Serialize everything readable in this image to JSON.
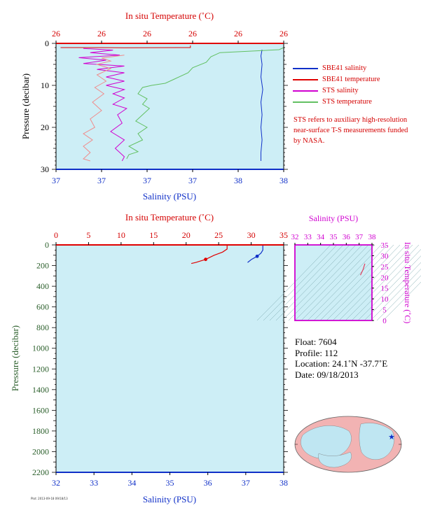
{
  "chart_data": [
    {
      "type": "line",
      "title": "",
      "top_axis_label": "In situ Temperature (˚C)",
      "top_ticks": [
        "26",
        "26",
        "26",
        "26",
        "26",
        "26"
      ],
      "xlabel": "Salinity (PSU)",
      "x_ticks": [
        "37",
        "37",
        "37",
        "37",
        "38",
        "38"
      ],
      "ylabel": "Pressure (decibar)",
      "y_ticks": [
        "0",
        "10",
        "20",
        "30"
      ],
      "ylim": [
        0,
        30
      ],
      "grid": false,
      "series": [
        {
          "name": "SBE41 salinity",
          "color": "#1030c8",
          "points": [
            [
              0.905,
              1.5
            ],
            [
              0.9,
              3
            ],
            [
              0.905,
              5
            ],
            [
              0.9,
              8
            ],
            [
              0.908,
              11
            ],
            [
              0.9,
              14
            ],
            [
              0.905,
              17
            ],
            [
              0.9,
              20
            ],
            [
              0.905,
              23
            ],
            [
              0.9,
              26
            ],
            [
              0.9,
              28
            ]
          ]
        },
        {
          "name": "SBE41 temperature",
          "color": "#e00000",
          "points": [
            [
              0.59,
              0.5
            ],
            [
              0.59,
              1.0
            ],
            [
              0.3,
              1.05
            ],
            [
              0.2,
              1.0
            ],
            [
              0.02,
              1.0
            ]
          ]
        },
        {
          "name": "STS salinity",
          "color": "#d000d0",
          "points": [
            [
              0.12,
              1.2
            ],
            [
              0.25,
              1.6
            ],
            [
              0.15,
              2.2
            ],
            [
              0.28,
              2.8
            ],
            [
              0.1,
              3.4
            ],
            [
              0.22,
              4.0
            ],
            [
              0.12,
              4.8
            ],
            [
              0.3,
              5.4
            ],
            [
              0.18,
              6.2
            ],
            [
              0.3,
              7.0
            ],
            [
              0.22,
              8.0
            ],
            [
              0.3,
              9.0
            ],
            [
              0.22,
              10.0
            ],
            [
              0.3,
              11.0
            ],
            [
              0.25,
              12.0
            ],
            [
              0.3,
              13.0
            ],
            [
              0.25,
              14.5
            ],
            [
              0.31,
              15.5
            ],
            [
              0.27,
              17.0
            ],
            [
              0.29,
              19.0
            ],
            [
              0.24,
              21.0
            ],
            [
              0.3,
              23.0
            ],
            [
              0.26,
              25.0
            ],
            [
              0.3,
              27.0
            ],
            [
              0.29,
              28.0
            ]
          ]
        },
        {
          "name": "STS temperature",
          "color": "#62c062",
          "points": [
            [
              1.0,
              1.0
            ],
            [
              0.98,
              1.5
            ],
            [
              0.72,
              2.2
            ],
            [
              0.68,
              3.2
            ],
            [
              0.66,
              4.5
            ],
            [
              0.6,
              5.8
            ],
            [
              0.58,
              7.0
            ],
            [
              0.52,
              8.5
            ],
            [
              0.48,
              9.5
            ],
            [
              0.42,
              10.0
            ],
            [
              0.38,
              10.5
            ],
            [
              0.36,
              12.0
            ],
            [
              0.4,
              13.2
            ],
            [
              0.38,
              14.5
            ],
            [
              0.41,
              15.5
            ],
            [
              0.38,
              17.0
            ],
            [
              0.35,
              18.5
            ],
            [
              0.4,
              20.0
            ],
            [
              0.36,
              21.5
            ],
            [
              0.38,
              23.0
            ],
            [
              0.32,
              24.5
            ],
            [
              0.36,
              25.8
            ],
            [
              0.32,
              26.5
            ],
            [
              0.31,
              27.5
            ]
          ]
        },
        {
          "name": "STS temperature (pink)",
          "color": "#f08c8c",
          "points": [
            [
              0.3,
              2.8
            ],
            [
              0.2,
              3.5
            ],
            [
              0.24,
              4.2
            ],
            [
              0.18,
              5.0
            ],
            [
              0.24,
              6.0
            ],
            [
              0.18,
              7.5
            ],
            [
              0.22,
              9.0
            ],
            [
              0.17,
              10.5
            ],
            [
              0.21,
              12.0
            ],
            [
              0.16,
              14.0
            ],
            [
              0.2,
              16.0
            ],
            [
              0.15,
              18.0
            ],
            [
              0.17,
              20.0
            ],
            [
              0.12,
              21.5
            ],
            [
              0.16,
              23.0
            ],
            [
              0.12,
              24.5
            ],
            [
              0.15,
              26.0
            ],
            [
              0.12,
              27.5
            ],
            [
              0.15,
              28.0
            ]
          ]
        }
      ]
    },
    {
      "type": "line",
      "title": "",
      "top_axis_label": "In situ Temperature (˚C)",
      "top_ticks": [
        "0",
        "5",
        "10",
        "15",
        "20",
        "25",
        "30",
        "35"
      ],
      "xlabel": "Salinity (PSU)",
      "x_ticks": [
        "32",
        "33",
        "34",
        "35",
        "36",
        "37",
        "38"
      ],
      "xlim": [
        32,
        38
      ],
      "ylabel": "Pressure (decibar)",
      "y_ticks": [
        "0",
        "200",
        "400",
        "600",
        "800",
        "1000",
        "1200",
        "1400",
        "1600",
        "1800",
        "2000",
        "2200"
      ],
      "ylim": [
        0,
        2200
      ],
      "grid": false,
      "series": [
        {
          "name": "temperature",
          "color": "#e00000",
          "axis": "temperature",
          "points": [
            [
              26.3,
              0
            ],
            [
              26.3,
              40
            ],
            [
              25.6,
              70
            ],
            [
              24.3,
              100
            ],
            [
              23.0,
              140
            ],
            [
              21.5,
              170
            ],
            [
              20.8,
              180
            ]
          ]
        },
        {
          "name": "salinity",
          "color": "#1030c8",
          "axis": "salinity",
          "points": [
            [
              37.45,
              0
            ],
            [
              37.45,
              50
            ],
            [
              37.4,
              80
            ],
            [
              37.3,
              110
            ],
            [
              37.15,
              140
            ],
            [
              37.05,
              170
            ]
          ]
        }
      ]
    },
    {
      "type": "scatter",
      "title": "",
      "xlabel": "Salinity (PSU)",
      "x_ticks": [
        "32",
        "33",
        "34",
        "35",
        "36",
        "37",
        "38"
      ],
      "xlim": [
        32,
        38
      ],
      "ylabel": "In situ Temperature (˚C)",
      "y_ticks": [
        "0",
        "5",
        "10",
        "15",
        "20",
        "25",
        "30",
        "35"
      ],
      "ylim": [
        0,
        35
      ],
      "series": [
        {
          "name": "T-S",
          "color": "#e04060",
          "points": [
            [
              37.45,
              26.3
            ],
            [
              37.3,
              23.5
            ],
            [
              37.1,
              21.0
            ]
          ]
        }
      ]
    }
  ],
  "legend": [
    {
      "label": "SBE41 salinity",
      "color": "#1030c8"
    },
    {
      "label": "SBE41 temperature",
      "color": "#e00000"
    },
    {
      "label": "STS salinity",
      "color": "#d000d0"
    },
    {
      "label": "STS temperature",
      "color": "#62c062"
    }
  ],
  "note": "STS refers to auxiliary high-resolution near-surface T-S measurements funded by NASA.",
  "float_info": {
    "float": "Float:  7604",
    "profile": "Profile:  112",
    "location": "Location:  24.1˚N  -37.7˚E",
    "date": "Date:  09/18/2013"
  },
  "footer": "Plot: 2013-09-18  09/18/13",
  "map": {
    "marker": "float-position-star",
    "marker_color": "#1030c8"
  },
  "colors": {
    "plot_bg": "#cdeef6",
    "red": "#e00000",
    "blue": "#1030c8",
    "magenta": "#d000d0",
    "green": "#2a5e2a"
  }
}
